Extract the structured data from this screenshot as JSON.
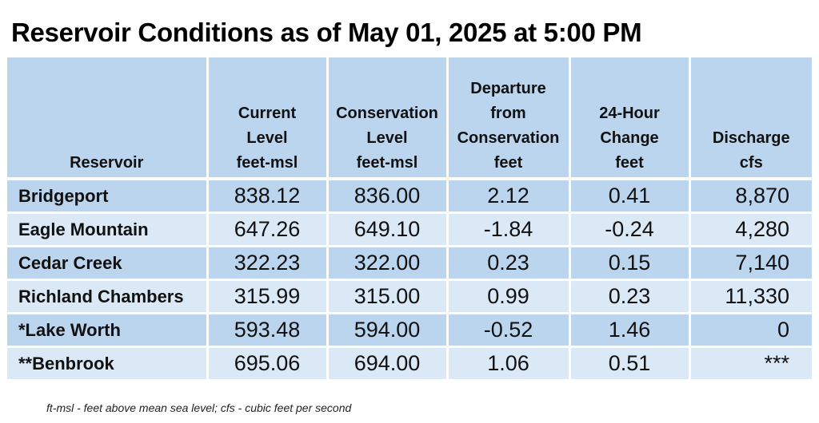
{
  "title": "Reservoir Conditions as of May 01, 2025 at 5:00 PM",
  "columns": [
    {
      "lines": [
        "Reservoir"
      ]
    },
    {
      "lines": [
        "Current",
        "Level",
        "feet-msl"
      ]
    },
    {
      "lines": [
        "Conservation",
        "Level",
        "feet-msl"
      ]
    },
    {
      "lines": [
        "Departure",
        "from",
        "Conservation",
        "feet"
      ]
    },
    {
      "lines": [
        "24-Hour",
        "Change",
        "feet"
      ]
    },
    {
      "lines": [
        "Discharge",
        "cfs"
      ]
    }
  ],
  "rows": [
    {
      "name": "Bridgeport",
      "current": "838.12",
      "conservation": "836.00",
      "departure": "2.12",
      "change": "0.41",
      "discharge": "8,870"
    },
    {
      "name": "Eagle Mountain",
      "current": "647.26",
      "conservation": "649.10",
      "departure": "-1.84",
      "change": "-0.24",
      "discharge": "4,280"
    },
    {
      "name": "Cedar Creek",
      "current": "322.23",
      "conservation": "322.00",
      "departure": "0.23",
      "change": "0.15",
      "discharge": "7,140"
    },
    {
      "name": "Richland Chambers",
      "current": "315.99",
      "conservation": "315.00",
      "departure": "0.99",
      "change": "0.23",
      "discharge": "11,330"
    },
    {
      "name": "*Lake Worth",
      "current": "593.48",
      "conservation": "594.00",
      "departure": "-0.52",
      "change": "1.46",
      "discharge": "0"
    },
    {
      "name": "**Benbrook",
      "current": "695.06",
      "conservation": "694.00",
      "departure": "1.06",
      "change": "0.51",
      "discharge": "***"
    }
  ],
  "footnote": "ft-msl - feet above mean sea level; cfs - cubic feet per second",
  "colors": {
    "header_bg": "#bcd5ee",
    "row_dark": "#bcd5ee",
    "row_light": "#dbe8f6"
  }
}
